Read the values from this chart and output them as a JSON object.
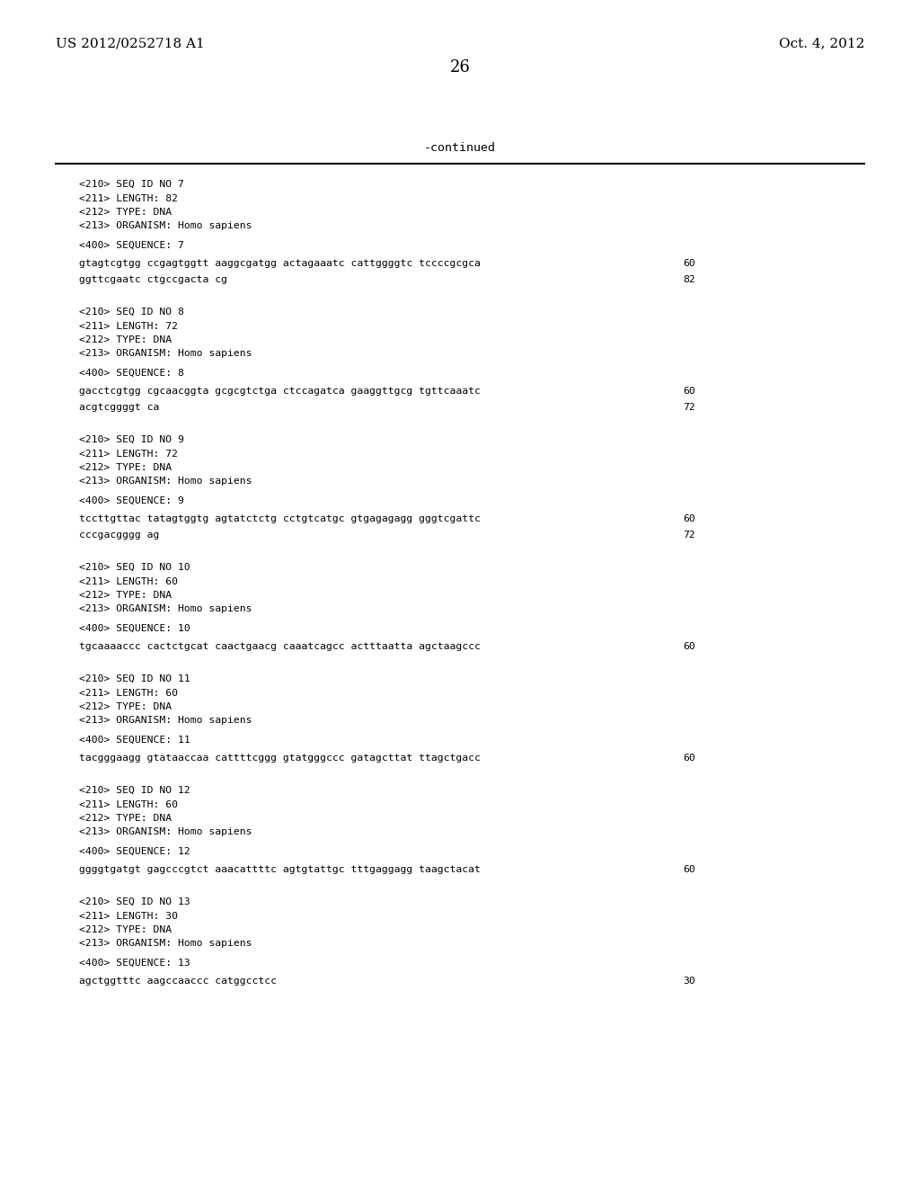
{
  "header_left": "US 2012/0252718 A1",
  "header_right": "Oct. 4, 2012",
  "page_number": "26",
  "continued_text": "-continued",
  "bg_color": "#ffffff",
  "text_color": "#000000",
  "content_blocks": [
    {
      "type": "meta",
      "lines": [
        "<210> SEQ ID NO 7",
        "<211> LENGTH: 82",
        "<212> TYPE: DNA",
        "<213> ORGANISM: Homo sapiens"
      ]
    },
    {
      "type": "seq_label",
      "text": "<400> SEQUENCE: 7"
    },
    {
      "type": "seq_line",
      "text": "gtagtcgtgg ccgagtggtt aaggcgatgg actagaaatc cattggggtc tccccgcgca",
      "num": "60"
    },
    {
      "type": "seq_line",
      "text": "ggttcgaatc ctgccgacta cg",
      "num": "82"
    },
    {
      "type": "gap"
    },
    {
      "type": "meta",
      "lines": [
        "<210> SEQ ID NO 8",
        "<211> LENGTH: 72",
        "<212> TYPE: DNA",
        "<213> ORGANISM: Homo sapiens"
      ]
    },
    {
      "type": "seq_label",
      "text": "<400> SEQUENCE: 8"
    },
    {
      "type": "seq_line",
      "text": "gacctcgtgg cgcaacggta gcgcgtctga ctccagatca gaaggttgcg tgttcaaatc",
      "num": "60"
    },
    {
      "type": "seq_line",
      "text": "acgtcggggt ca",
      "num": "72"
    },
    {
      "type": "gap"
    },
    {
      "type": "meta",
      "lines": [
        "<210> SEQ ID NO 9",
        "<211> LENGTH: 72",
        "<212> TYPE: DNA",
        "<213> ORGANISM: Homo sapiens"
      ]
    },
    {
      "type": "seq_label",
      "text": "<400> SEQUENCE: 9"
    },
    {
      "type": "seq_line",
      "text": "tccttgttac tatagtggtg agtatctctg cctgtcatgc gtgagagagg gggtcgattc",
      "num": "60"
    },
    {
      "type": "seq_line",
      "text": "cccgacgggg ag",
      "num": "72"
    },
    {
      "type": "gap"
    },
    {
      "type": "meta",
      "lines": [
        "<210> SEQ ID NO 10",
        "<211> LENGTH: 60",
        "<212> TYPE: DNA",
        "<213> ORGANISM: Homo sapiens"
      ]
    },
    {
      "type": "seq_label",
      "text": "<400> SEQUENCE: 10"
    },
    {
      "type": "seq_line",
      "text": "tgcaaaaccc cactctgcat caactgaacg caaatcagcc actttaatta agctaagccc",
      "num": "60"
    },
    {
      "type": "gap"
    },
    {
      "type": "meta",
      "lines": [
        "<210> SEQ ID NO 11",
        "<211> LENGTH: 60",
        "<212> TYPE: DNA",
        "<213> ORGANISM: Homo sapiens"
      ]
    },
    {
      "type": "seq_label",
      "text": "<400> SEQUENCE: 11"
    },
    {
      "type": "seq_line",
      "text": "tacgggaagg gtataaccaa cattttcggg gtatgggccc gatagcttat ttagctgacc",
      "num": "60"
    },
    {
      "type": "gap"
    },
    {
      "type": "meta",
      "lines": [
        "<210> SEQ ID NO 12",
        "<211> LENGTH: 60",
        "<212> TYPE: DNA",
        "<213> ORGANISM: Homo sapiens"
      ]
    },
    {
      "type": "seq_label",
      "text": "<400> SEQUENCE: 12"
    },
    {
      "type": "seq_line",
      "text": "ggggtgatgt gagcccgtct aaacattttc agtgtattgc tttgaggagg taagctacat",
      "num": "60"
    },
    {
      "type": "gap"
    },
    {
      "type": "meta",
      "lines": [
        "<210> SEQ ID NO 13",
        "<211> LENGTH: 30",
        "<212> TYPE: DNA",
        "<213> ORGANISM: Homo sapiens"
      ]
    },
    {
      "type": "seq_label",
      "text": "<400> SEQUENCE: 13"
    },
    {
      "type": "seq_line",
      "text": "agctggtttc aagccaaccc catggcctcc",
      "num": "30"
    }
  ]
}
